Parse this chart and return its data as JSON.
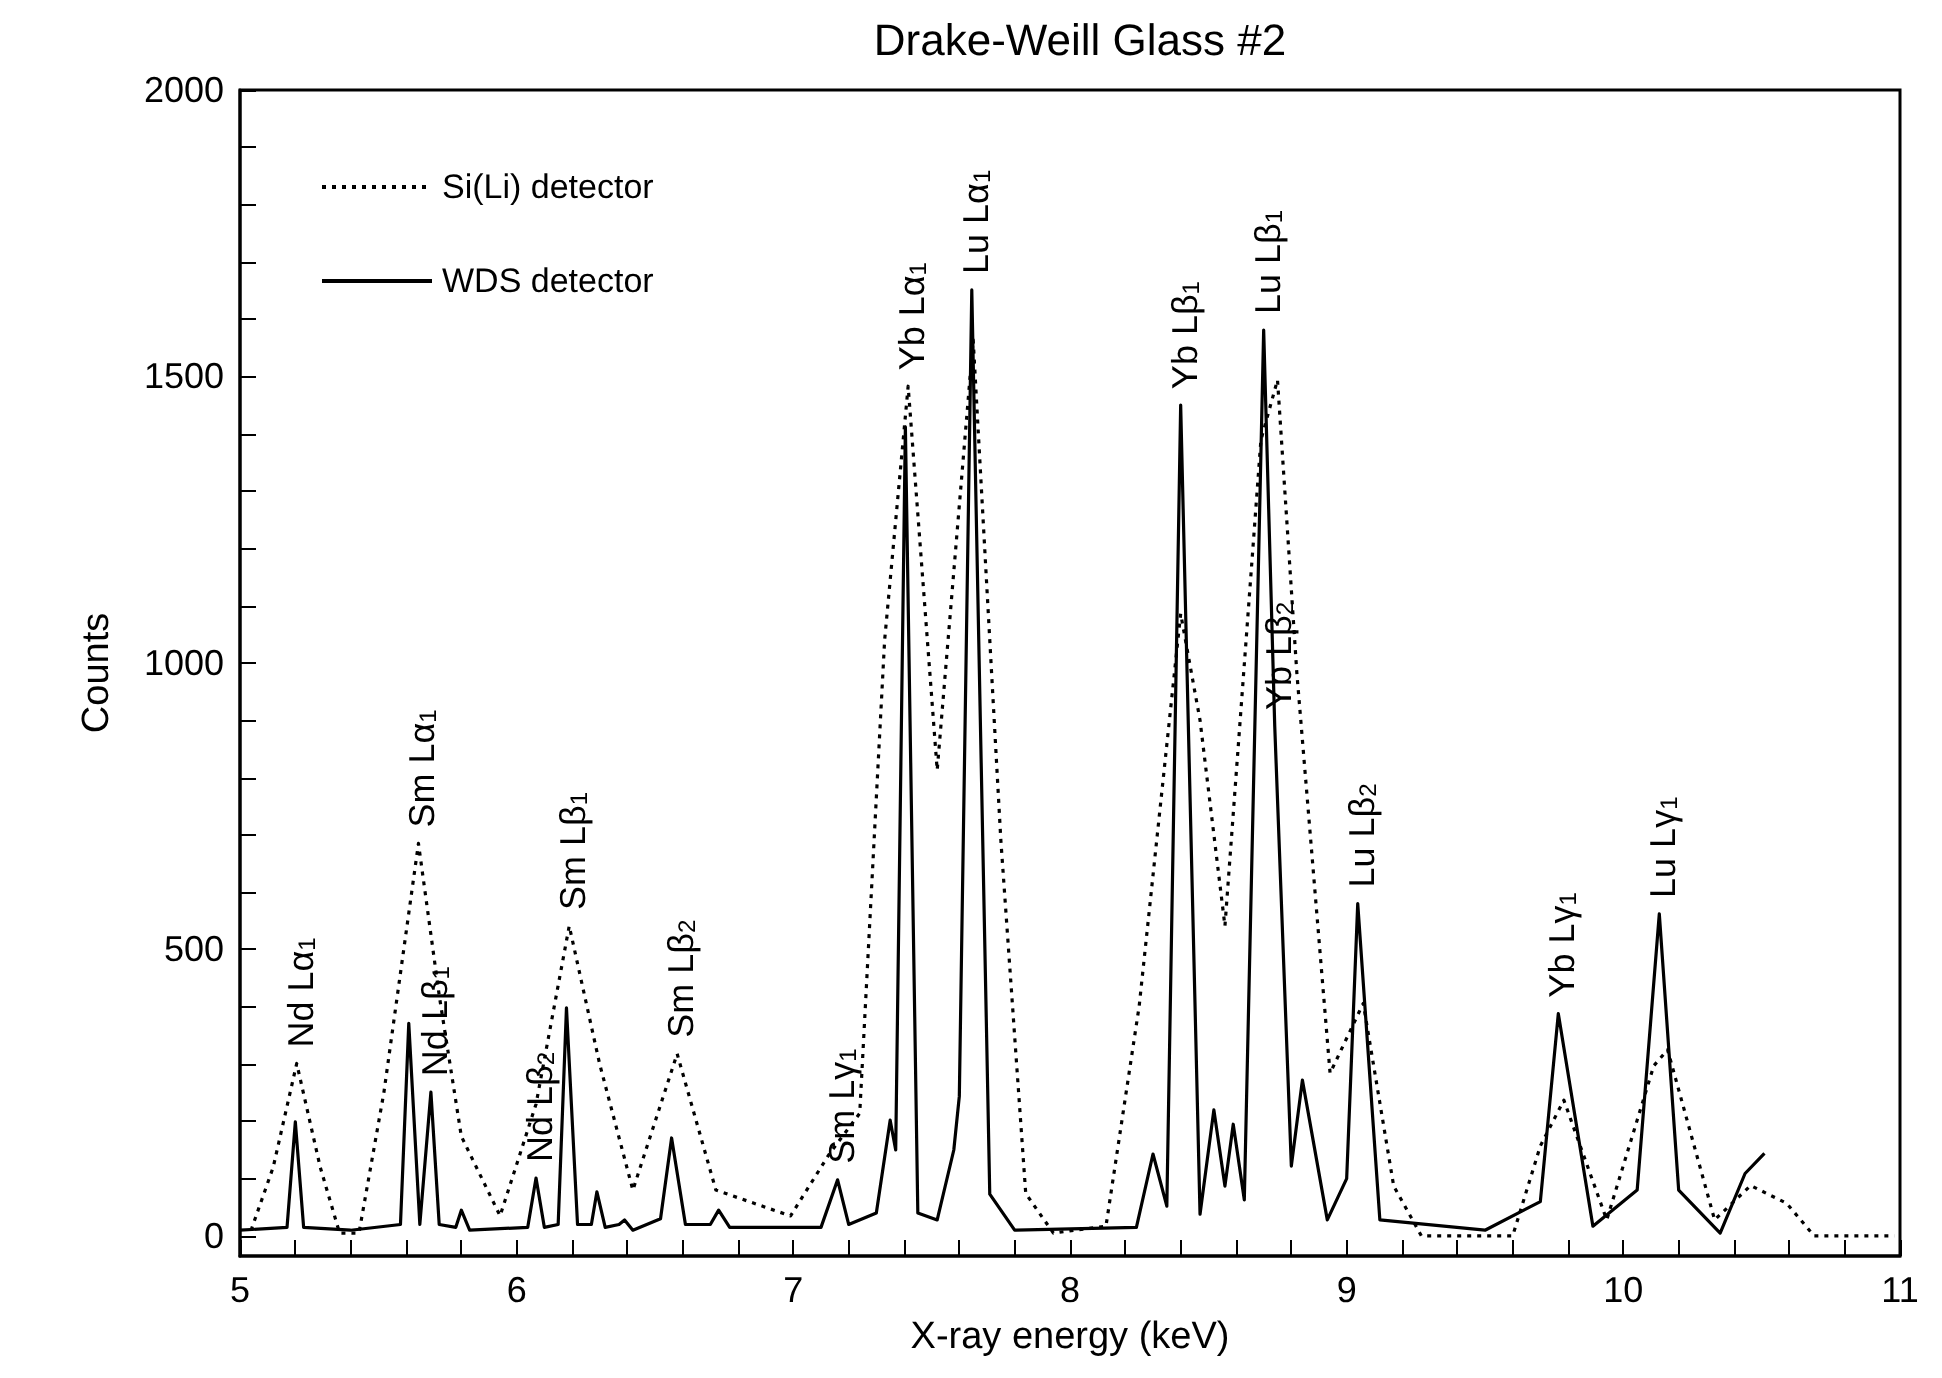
{
  "chart_data": {
    "type": "line",
    "title": "Drake-Weill Glass #2",
    "xlabel": "X-ray energy (keV)",
    "ylabel": "Counts",
    "xlim": [
      5,
      11
    ],
    "ylim": [
      -35,
      2000
    ],
    "xticks": [
      5,
      {
        "value": 5.2,
        "label": null
      },
      {
        "value": 5.4,
        "label": null
      },
      {
        "value": 5.6,
        "label": null
      },
      {
        "value": 5.8,
        "label": null
      },
      6,
      {
        "value": 6.2,
        "label": null
      },
      {
        "value": 6.4,
        "label": null
      },
      {
        "value": 6.6,
        "label": null
      },
      {
        "value": 6.8,
        "label": null
      },
      7,
      {
        "value": 7.2,
        "label": null
      },
      {
        "value": 7.4,
        "label": null
      },
      {
        "value": 7.6,
        "label": null
      },
      {
        "value": 7.8,
        "label": null
      },
      8,
      {
        "value": 8.2,
        "label": null
      },
      {
        "value": 8.4,
        "label": null
      },
      {
        "value": 8.6,
        "label": null
      },
      {
        "value": 8.8,
        "label": null
      },
      9,
      {
        "value": 9.2,
        "label": null
      },
      {
        "value": 9.4,
        "label": null
      },
      {
        "value": 9.6,
        "label": null
      },
      {
        "value": 9.8,
        "label": null
      },
      10,
      {
        "value": 10.2,
        "label": null
      },
      {
        "value": 10.4,
        "label": null
      },
      {
        "value": 10.6,
        "label": null
      },
      {
        "value": 10.8,
        "label": null
      },
      11
    ],
    "yticks": [
      0,
      {
        "value": 100,
        "label": null
      },
      {
        "value": 200,
        "label": null
      },
      {
        "value": 300,
        "label": null
      },
      {
        "value": 400,
        "label": null
      },
      500,
      {
        "value": 600,
        "label": null
      },
      {
        "value": 700,
        "label": null
      },
      {
        "value": 800,
        "label": null
      },
      {
        "value": 900,
        "label": null
      },
      1000,
      {
        "value": 1100,
        "label": null
      },
      {
        "value": 1200,
        "label": null
      },
      {
        "value": 1300,
        "label": null
      },
      {
        "value": 1400,
        "label": null
      },
      1500,
      {
        "value": 1600,
        "label": null
      },
      {
        "value": 1700,
        "label": null
      },
      {
        "value": 1800,
        "label": null
      },
      {
        "value": 1900,
        "label": null
      },
      2000
    ],
    "grid": false,
    "legend": "top left",
    "marker": "none",
    "series": [
      {
        "name": "Si(Li) detector",
        "color": "#000000",
        "line_style": "dotted",
        "x": [
          5.04,
          5.12,
          5.205,
          5.29,
          5.36,
          5.43,
          5.52,
          5.645,
          5.72,
          5.8,
          5.94,
          6.07,
          6.19,
          6.3,
          6.42,
          6.58,
          6.72,
          6.99,
          7.13,
          7.24,
          7.33,
          7.415,
          7.52,
          7.65,
          7.75,
          7.84,
          7.94,
          8.13,
          8.25,
          8.4,
          8.47,
          8.56,
          8.69,
          8.75,
          8.82,
          8.94,
          9.06,
          9.17,
          9.27,
          9.6,
          9.7,
          9.785,
          9.94,
          10.11,
          10.16,
          10.33,
          10.46,
          10.59,
          10.69,
          10.98
        ],
        "values": [
          10,
          120,
          301,
          120,
          5,
          5,
          250,
          685,
          420,
          174,
          35,
          230,
          541,
          300,
          80,
          318,
          80,
          35,
          143,
          214,
          1040,
          1483,
          813,
          1564,
          691,
          74,
          5,
          17,
          401,
          1086,
          900,
          541,
          1389,
          1494,
          982,
          284,
          406,
          87,
          0,
          0,
          157,
          237,
          28,
          297,
          325,
          28,
          88,
          57,
          0,
          0
        ]
      },
      {
        "name": "WDS detector",
        "color": "#000000",
        "line_style": "solid",
        "x": [
          5.0,
          5.17,
          5.2,
          5.23,
          5.4,
          5.58,
          5.61,
          5.65,
          5.69,
          5.72,
          5.78,
          5.8,
          5.83,
          6.04,
          6.07,
          6.1,
          6.15,
          6.18,
          6.22,
          6.27,
          6.29,
          6.32,
          6.37,
          6.39,
          6.42,
          6.52,
          6.56,
          6.61,
          6.7,
          6.73,
          6.77,
          7.1,
          7.16,
          7.2,
          7.3,
          7.35,
          7.37,
          7.405,
          7.45,
          7.52,
          7.58,
          7.6,
          7.645,
          7.71,
          7.8,
          8.24,
          8.3,
          8.35,
          8.4,
          8.47,
          8.52,
          8.56,
          8.59,
          8.63,
          8.7,
          8.74,
          8.8,
          8.84,
          8.93,
          9.0,
          9.04,
          9.12,
          9.5,
          9.7,
          9.765,
          9.89,
          10.05,
          10.13,
          10.2,
          10.35,
          10.44,
          10.51
        ],
        "values": [
          10,
          15,
          199,
          15,
          10,
          20,
          371,
          20,
          251,
          20,
          15,
          45,
          10,
          15,
          101,
          15,
          20,
          398,
          20,
          20,
          77,
          15,
          20,
          28,
          10,
          30,
          171,
          20,
          20,
          45,
          15,
          15,
          98,
          20,
          40,
          202,
          150,
          1412,
          40,
          28,
          150,
          244,
          1651,
          73,
          10,
          15,
          143,
          52,
          1450,
          38,
          220,
          87,
          195,
          63,
          1581,
          890,
          122,
          272,
          28,
          100,
          580,
          28,
          10,
          60,
          388,
          17,
          80,
          562,
          80,
          5,
          109,
          144
        ]
      }
    ],
    "annotations": [
      {
        "text": "Nd Lα$_{1}$",
        "x": 5.205,
        "y": 301
      },
      {
        "text": "Sm Lα$_{1}$",
        "x": 5.645,
        "y": 685
      },
      {
        "text": "Nd Lβ$_{1}$",
        "x": 5.69,
        "y": 251
      },
      {
        "text": "Nd Lβ$_{2}$",
        "x": 6.07,
        "y": 101
      },
      {
        "text": "Sm Lβ$_{1}$",
        "x": 6.19,
        "y": 541
      },
      {
        "text": "Sm Lβ$_{2}$",
        "x": 6.58,
        "y": 318
      },
      {
        "text": "Sm Lγ$_{1}$",
        "x": 7.16,
        "y": 98
      },
      {
        "text": "Yb Lα$_{1}$",
        "x": 7.415,
        "y": 1483
      },
      {
        "text": "Lu Lα$_{1}$",
        "x": 7.645,
        "y": 1651
      },
      {
        "text": "Yb Lβ$_{1}$",
        "x": 8.4,
        "y": 1450
      },
      {
        "text": "Lu Lβ$_{1}$",
        "x": 8.7,
        "y": 1581
      },
      {
        "text": "Yb Lβ$_{2}$",
        "x": 8.74,
        "y": 890
      },
      {
        "text": "Lu Lβ$_{2}$",
        "x": 9.04,
        "y": 580
      },
      {
        "text": "Yb Lγ$_{1}$",
        "x": 9.765,
        "y": 388
      },
      {
        "text": "Lu Lγ$_{1}$",
        "x": 10.13,
        "y": 562
      }
    ]
  }
}
